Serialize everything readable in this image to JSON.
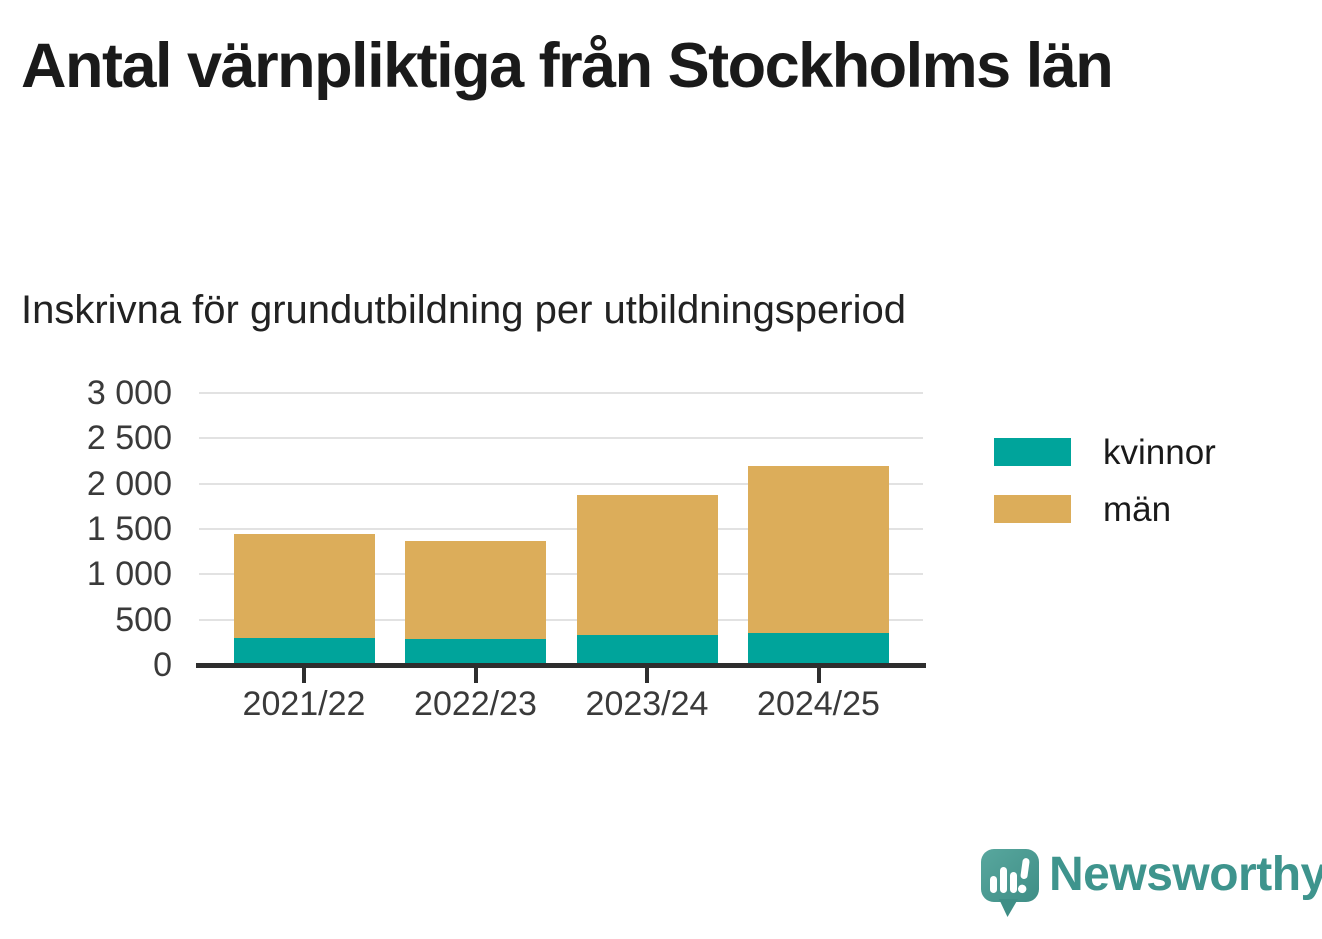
{
  "chart_data": {
    "type": "bar",
    "stacked": true,
    "title": "Antal värnpliktiga från Stockholms län",
    "subtitle": "Inskrivna för grundutbildning per utbildningsperiod",
    "categories": [
      "2021/22",
      "2022/23",
      "2023/24",
      "2024/25"
    ],
    "series": [
      {
        "name": "kvinnor",
        "color": "#00A49B",
        "values": [
          300,
          290,
          330,
          350
        ]
      },
      {
        "name": "män",
        "color": "#DCAD5A",
        "values": [
          1150,
          1075,
          1545,
          1850
        ]
      }
    ],
    "ylim": [
      0,
      3000
    ],
    "ytick_step": 500,
    "ytick_labels": [
      "0",
      "500",
      "1 000",
      "1 500",
      "2 000",
      "2 500",
      "3 000"
    ],
    "xlabel": "",
    "ylabel": "",
    "grid": true,
    "legend_position": "right-of-plot"
  },
  "colors": {
    "kvinnor": "#00A49B",
    "man": "#DCAD5A",
    "axis": "#2E2E2E",
    "gridline": "#E2E2E2",
    "text": "#1A1A1A",
    "tick_text": "#3A3A3A",
    "logo_teal": "#3E948D",
    "logo_bubble": "#4B9991"
  },
  "footer": {
    "brand": "Newsworthy"
  }
}
